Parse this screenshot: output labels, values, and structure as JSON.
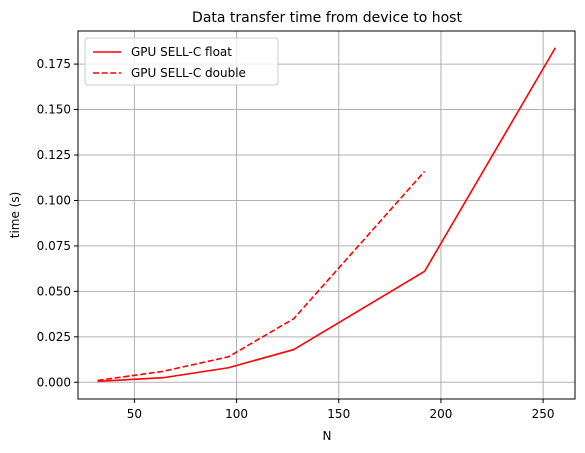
{
  "chart_data": {
    "type": "line",
    "title": "Data transfer time from device to host",
    "xlabel": "N",
    "ylabel": "time (s)",
    "xlim": [
      22.4,
      265.6
    ],
    "ylim": [
      -0.0092,
      0.1932
    ],
    "xticks": [
      50,
      100,
      150,
      200,
      250
    ],
    "xtick_labels": [
      "50",
      "100",
      "150",
      "200",
      "250"
    ],
    "yticks": [
      0.0,
      0.025,
      0.05,
      0.075,
      0.1,
      0.125,
      0.15,
      0.175
    ],
    "ytick_labels": [
      "0.000",
      "0.025",
      "0.050",
      "0.075",
      "0.100",
      "0.125",
      "0.150",
      "0.175"
    ],
    "grid": true,
    "legend_position": "top-left",
    "series": [
      {
        "name": "GPU SELL-C float",
        "color": "#ff0000",
        "style": "solid",
        "x": [
          32,
          64,
          96,
          128,
          192,
          256
        ],
        "y": [
          0.0005,
          0.0025,
          0.008,
          0.018,
          0.061,
          0.184
        ]
      },
      {
        "name": "GPU SELL-C double",
        "color": "#ff0000",
        "style": "dashed",
        "x": [
          32,
          64,
          96,
          128,
          192
        ],
        "y": [
          0.001,
          0.006,
          0.014,
          0.035,
          0.116
        ]
      }
    ]
  }
}
